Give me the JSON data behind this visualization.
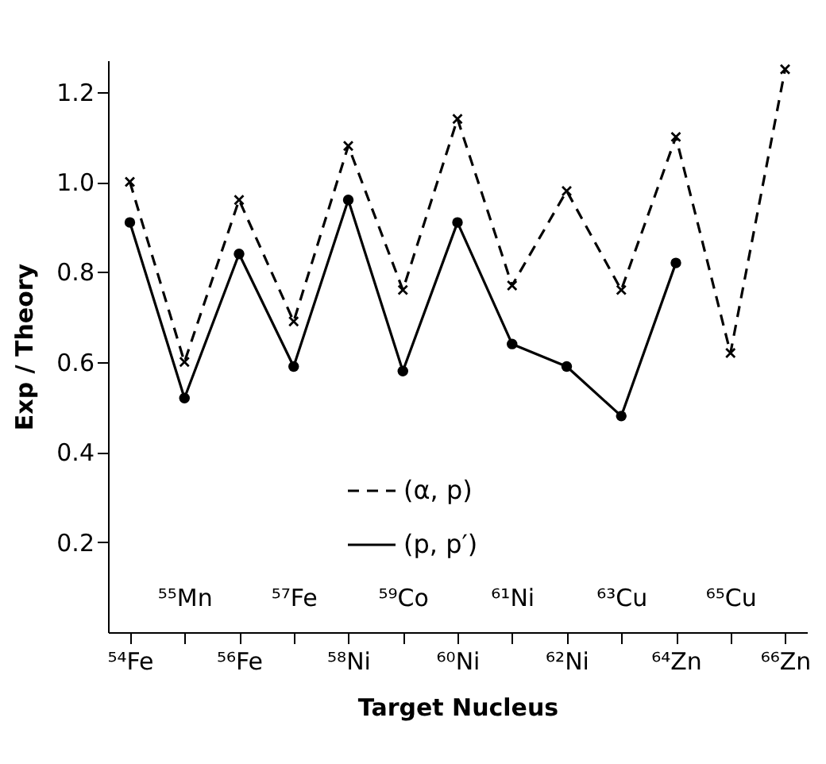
{
  "chart_data": {
    "type": "line",
    "xlabel": "Target Nucleus",
    "ylabel": "Exp / Theory",
    "categories": [
      "⁵⁴Fe",
      "⁵⁵Mn",
      "⁵⁶Fe",
      "⁵⁷Fe",
      "⁵⁸Ni",
      "⁵⁹Co",
      "⁶⁰Ni",
      "⁶¹Ni",
      "⁶²Ni",
      "⁶³Cu",
      "⁶⁴Zn",
      "⁶⁵Cu",
      "⁶⁶Zn"
    ],
    "ylim": [
      0,
      1.27
    ],
    "yticks": [
      0.2,
      0.4,
      0.6,
      0.8,
      {
        "value": 1,
        "label": "1.0"
      },
      1.2
    ],
    "grid": false,
    "legend": "bottom",
    "series": [
      {
        "name": "(α, p)",
        "color": "#000000",
        "marker": "cross",
        "line_style": "dashed",
        "values": [
          1.0,
          0.6,
          0.96,
          0.69,
          1.08,
          0.76,
          1.14,
          0.77,
          0.98,
          0.76,
          1.1,
          0.62,
          1.25
        ]
      },
      {
        "name": "(p, p′)",
        "color": "#000000",
        "marker": "circle",
        "line_style": "solid",
        "values": [
          0.91,
          0.52,
          0.84,
          0.59,
          0.96,
          0.58,
          0.91,
          0.64,
          0.59,
          0.48,
          0.82,
          null,
          null
        ]
      }
    ]
  }
}
